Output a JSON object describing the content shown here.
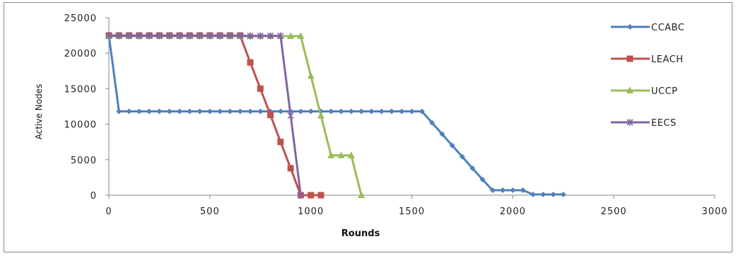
{
  "chart_data": {
    "type": "line",
    "title": "",
    "xlabel": "Rounds",
    "ylabel": "Active Nodes",
    "xlim": [
      0,
      3000
    ],
    "ylim": [
      0,
      25000
    ],
    "xticks": [
      0,
      500,
      1000,
      1500,
      2000,
      2500,
      3000
    ],
    "yticks": [
      0,
      5000,
      10000,
      15000,
      20000,
      25000
    ],
    "grid": false,
    "legend_position": "right",
    "series": [
      {
        "name": "CCABC",
        "color": "#4f81bd",
        "marker": "diamond",
        "points": [
          [
            0,
            22500
          ],
          [
            50,
            11800
          ],
          [
            100,
            11800
          ],
          [
            150,
            11800
          ],
          [
            200,
            11800
          ],
          [
            250,
            11800
          ],
          [
            300,
            11800
          ],
          [
            350,
            11800
          ],
          [
            400,
            11800
          ],
          [
            450,
            11800
          ],
          [
            500,
            11800
          ],
          [
            550,
            11800
          ],
          [
            600,
            11800
          ],
          [
            650,
            11800
          ],
          [
            700,
            11800
          ],
          [
            750,
            11800
          ],
          [
            800,
            11800
          ],
          [
            850,
            11800
          ],
          [
            900,
            11800
          ],
          [
            950,
            11800
          ],
          [
            1000,
            11800
          ],
          [
            1050,
            11800
          ],
          [
            1100,
            11800
          ],
          [
            1150,
            11800
          ],
          [
            1200,
            11800
          ],
          [
            1250,
            11800
          ],
          [
            1300,
            11800
          ],
          [
            1350,
            11800
          ],
          [
            1400,
            11800
          ],
          [
            1450,
            11800
          ],
          [
            1500,
            11800
          ],
          [
            1550,
            11800
          ],
          [
            1600,
            10200
          ],
          [
            1650,
            8600
          ],
          [
            1700,
            7000
          ],
          [
            1750,
            5400
          ],
          [
            1800,
            3800
          ],
          [
            1850,
            2200
          ],
          [
            1900,
            700
          ],
          [
            1950,
            700
          ],
          [
            2000,
            700
          ],
          [
            2050,
            700
          ],
          [
            2100,
            100
          ],
          [
            2150,
            100
          ],
          [
            2200,
            100
          ],
          [
            2250,
            100
          ]
        ]
      },
      {
        "name": "LEACH",
        "color": "#c0504d",
        "marker": "square",
        "points": [
          [
            0,
            22500
          ],
          [
            50,
            22500
          ],
          [
            100,
            22500
          ],
          [
            150,
            22500
          ],
          [
            200,
            22500
          ],
          [
            250,
            22500
          ],
          [
            300,
            22500
          ],
          [
            350,
            22500
          ],
          [
            400,
            22500
          ],
          [
            450,
            22500
          ],
          [
            500,
            22500
          ],
          [
            550,
            22500
          ],
          [
            600,
            22500
          ],
          [
            650,
            22500
          ],
          [
            700,
            18700
          ],
          [
            750,
            15000
          ],
          [
            800,
            11300
          ],
          [
            850,
            7500
          ],
          [
            900,
            3800
          ],
          [
            950,
            0
          ],
          [
            1000,
            0
          ],
          [
            1050,
            0
          ]
        ]
      },
      {
        "name": "UCCP",
        "color": "#9bbb59",
        "marker": "triangle",
        "points": [
          [
            0,
            22400
          ],
          [
            50,
            22400
          ],
          [
            100,
            22400
          ],
          [
            150,
            22400
          ],
          [
            200,
            22400
          ],
          [
            250,
            22400
          ],
          [
            300,
            22400
          ],
          [
            350,
            22400
          ],
          [
            400,
            22400
          ],
          [
            450,
            22400
          ],
          [
            500,
            22400
          ],
          [
            550,
            22400
          ],
          [
            600,
            22400
          ],
          [
            650,
            22400
          ],
          [
            700,
            22400
          ],
          [
            750,
            22400
          ],
          [
            800,
            22400
          ],
          [
            850,
            22400
          ],
          [
            900,
            22400
          ],
          [
            950,
            22400
          ],
          [
            1000,
            16800
          ],
          [
            1050,
            11200
          ],
          [
            1100,
            5600
          ],
          [
            1150,
            5600
          ],
          [
            1200,
            5600
          ],
          [
            1250,
            0
          ]
        ]
      },
      {
        "name": "EECS",
        "color": "#8064a2",
        "marker": "star",
        "points": [
          [
            0,
            22450
          ],
          [
            50,
            22450
          ],
          [
            100,
            22450
          ],
          [
            150,
            22450
          ],
          [
            200,
            22450
          ],
          [
            250,
            22450
          ],
          [
            300,
            22450
          ],
          [
            350,
            22450
          ],
          [
            400,
            22450
          ],
          [
            450,
            22450
          ],
          [
            500,
            22450
          ],
          [
            550,
            22450
          ],
          [
            600,
            22450
          ],
          [
            650,
            22450
          ],
          [
            700,
            22450
          ],
          [
            750,
            22450
          ],
          [
            800,
            22450
          ],
          [
            850,
            22450
          ],
          [
            900,
            11200
          ],
          [
            950,
            0
          ]
        ]
      }
    ]
  }
}
